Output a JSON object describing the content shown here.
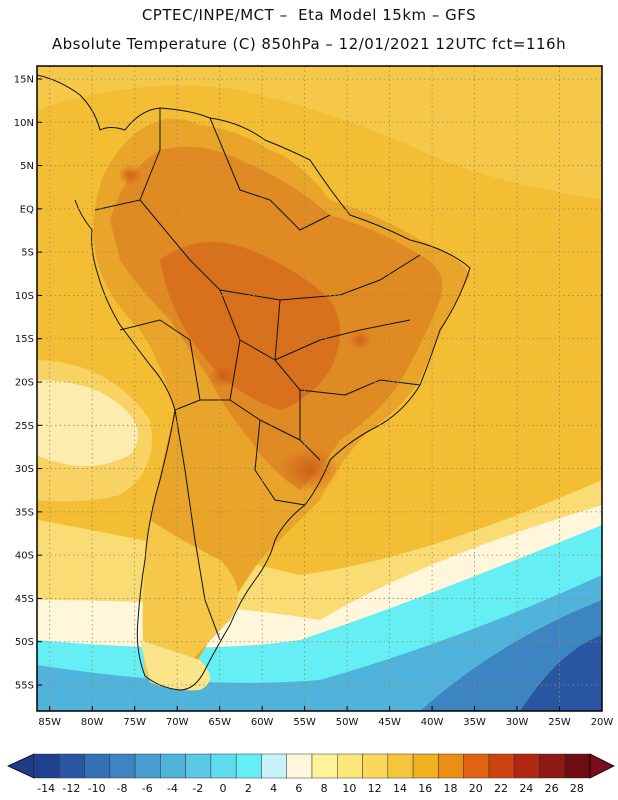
{
  "header": {
    "line1": "CPTEC/INPE/MCT –  Eta Model 15km – GFS",
    "line2": "Absolute Temperature (C) 850hPa – 12/01/2021 12UTC fct=116h"
  },
  "map": {
    "lat_labels": [
      "15N",
      "10N",
      "5N",
      "EQ",
      "5S",
      "10S",
      "15S",
      "20S",
      "25S",
      "30S",
      "35S",
      "40S",
      "45S",
      "50S",
      "55S"
    ],
    "lat_values": [
      15,
      10,
      5,
      0,
      -5,
      -10,
      -15,
      -20,
      -25,
      -30,
      -35,
      -40,
      -45,
      -50,
      -55
    ],
    "lon_labels": [
      "85W",
      "80W",
      "75W",
      "70W",
      "65W",
      "60W",
      "55W",
      "50W",
      "45W",
      "40W",
      "35W",
      "30W",
      "25W",
      "20W"
    ],
    "lon_values": [
      -85,
      -80,
      -75,
      -70,
      -65,
      -60,
      -55,
      -50,
      -45,
      -40,
      -35,
      -30,
      -25,
      -20
    ],
    "lat_range": [
      -58,
      16.5
    ],
    "lon_range": [
      -86.5,
      -20
    ]
  },
  "colorbar": {
    "labels": [
      "-14",
      "-12",
      "-10",
      "-8",
      "-6",
      "-4",
      "-2",
      "0",
      "2",
      "4",
      "6",
      "8",
      "10",
      "12",
      "14",
      "16",
      "18",
      "20",
      "22",
      "24",
      "26",
      "28"
    ],
    "colors": [
      "#1f3f8f",
      "#2956a0",
      "#3370b5",
      "#3d85c2",
      "#4a9ecf",
      "#4fb3dc",
      "#5ac8e6",
      "#5fdced",
      "#66eef5",
      "#c8f3fb",
      "#fff6dc",
      "#fff39a",
      "#fde77a",
      "#fbd85c",
      "#f5c53c",
      "#f1b01e",
      "#eb8e14",
      "#df6311",
      "#cc4210",
      "#b0280f",
      "#8e1812",
      "#6e0d10"
    ],
    "low_color": "#223a8a",
    "high_color": "#7a0d22"
  },
  "colors": {
    "ocean_warm": "#f4be34",
    "ocean_mid": "#f7d263",
    "cool_pale": "#fff6dc",
    "cyan": "#66eef5",
    "blue": "#3d85c2",
    "land_hot": "#e08a24",
    "land_hotter": "#d9701c",
    "land_hottest": "#cf5a17"
  }
}
